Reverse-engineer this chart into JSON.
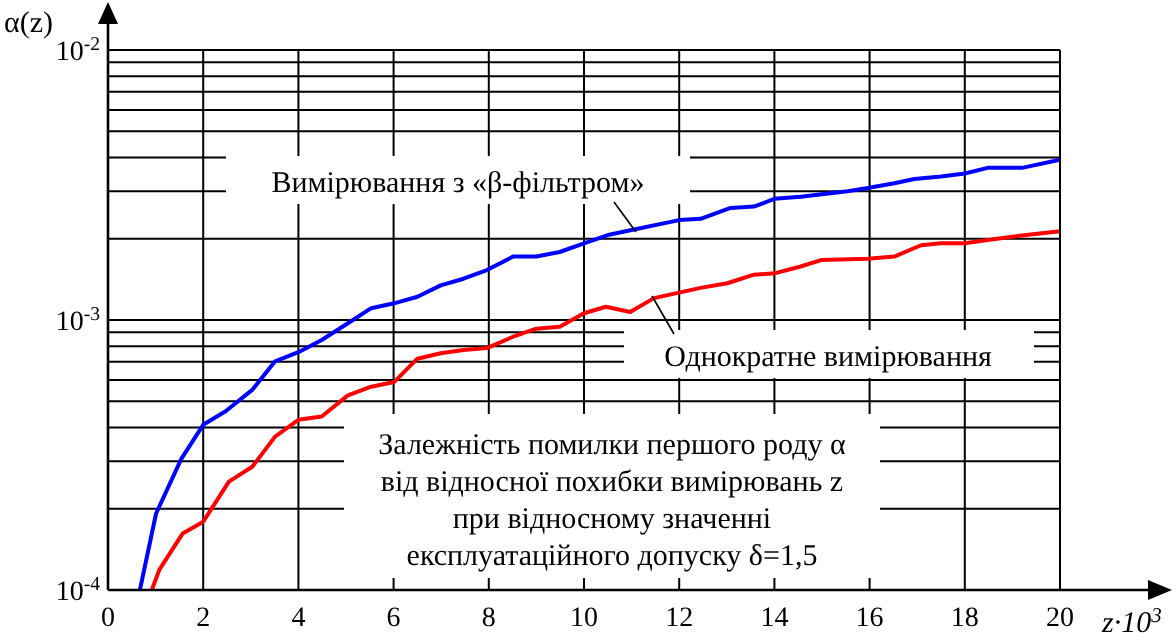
{
  "chart_data": {
    "type": "line",
    "xlabel": "z·10$^{3}$",
    "ylabel": "α(z)",
    "log": "y",
    "grid": true,
    "marker": "none",
    "line_style": "solid",
    "xlim": [
      0,
      20
    ],
    "ylim": [
      0.0001,
      0.01
    ],
    "xticks": [
      0,
      2,
      4,
      6,
      8,
      10,
      12,
      14,
      16,
      18,
      20
    ],
    "yticks": [
      {
        "value": 0.0001,
        "label": "10$^{-4}$"
      },
      {
        "value": 0.0002,
        "label": null
      },
      {
        "value": 0.0003,
        "label": null
      },
      {
        "value": 0.0004,
        "label": null
      },
      {
        "value": 0.0005,
        "label": null
      },
      {
        "value": 0.0006,
        "label": null
      },
      {
        "value": 0.0007,
        "label": null
      },
      {
        "value": 0.0008,
        "label": null
      },
      {
        "value": 0.0009,
        "label": null
      },
      {
        "value": 0.001,
        "label": "10$^{-3}$"
      },
      {
        "value": 0.002,
        "label": null
      },
      {
        "value": 0.003,
        "label": null
      },
      {
        "value": 0.004,
        "label": null
      },
      {
        "value": 0.005,
        "label": null
      },
      {
        "value": 0.006,
        "label": null
      },
      {
        "value": 0.007,
        "label": null
      },
      {
        "value": 0.008,
        "label": null
      },
      {
        "value": 0.009,
        "label": null
      },
      {
        "value": 0.01,
        "label": "10$^{-2}$"
      }
    ],
    "series": [
      {
        "name": "Вимірювання з «β-фільтром»",
        "color": "#0000ff",
        "x": [
          0.67,
          1.01,
          1.54,
          2.0,
          2.47,
          3.03,
          3.51,
          4.0,
          4.49,
          5.04,
          5.53,
          6.01,
          6.5,
          6.99,
          7.47,
          7.96,
          8.51,
          9.0,
          9.49,
          10.0,
          10.53,
          11.0,
          12.0,
          12.45,
          13.08,
          13.57,
          14.0,
          14.55,
          15.54,
          15.96,
          16.52,
          16.94,
          17.5,
          18.0,
          18.48,
          19.2,
          20
        ],
        "values": [
          0.0001,
          0.000192,
          0.000306,
          0.000409,
          0.000459,
          0.000551,
          0.000703,
          0.00076,
          0.000843,
          0.000973,
          0.001106,
          0.001153,
          0.001219,
          0.001343,
          0.001422,
          0.001531,
          0.001718,
          0.001718,
          0.001786,
          0.001923,
          0.00207,
          0.002153,
          0.002344,
          0.002371,
          0.0026,
          0.00263,
          0.00281,
          0.00286,
          0.003,
          0.00308,
          0.00321,
          0.00333,
          0.0034,
          0.00349,
          0.00366,
          0.00366,
          0.00392
        ]
      },
      {
        "name": "Однократне вимірювання",
        "color": "#ff0000",
        "x": [
          0.92,
          1.08,
          1.57,
          2.0,
          2.54,
          3.03,
          3.51,
          4.0,
          4.49,
          5.04,
          5.53,
          6.01,
          6.5,
          6.99,
          7.47,
          7.96,
          8.51,
          9.0,
          9.49,
          10.0,
          10.46,
          10.97,
          11.47,
          12.45,
          13.01,
          13.57,
          14.0,
          14.55,
          14.98,
          15.96,
          16.52,
          17.08,
          17.5,
          18.0,
          18.48,
          19.33,
          20
        ],
        "values": [
          0.0001,
          0.000119,
          0.000162,
          0.000179,
          0.000252,
          0.000286,
          0.00037,
          0.000427,
          0.000439,
          0.000526,
          0.000566,
          0.000589,
          0.000719,
          0.000753,
          0.000774,
          0.000787,
          0.000867,
          0.000929,
          0.000944,
          0.001059,
          0.00112,
          0.00107,
          0.001205,
          0.001315,
          0.001368,
          0.001472,
          0.001489,
          0.001578,
          0.001667,
          0.001687,
          0.001718,
          0.001892,
          0.001923,
          0.001923,
          0.001977,
          0.00207,
          0.00213
        ]
      }
    ],
    "annotations": [
      "Залежність помилки першого роду α\nвід відносної похибки вимірювань z\nпри відносному значенні\nексплуатаційного допуску δ=1,5"
    ]
  }
}
